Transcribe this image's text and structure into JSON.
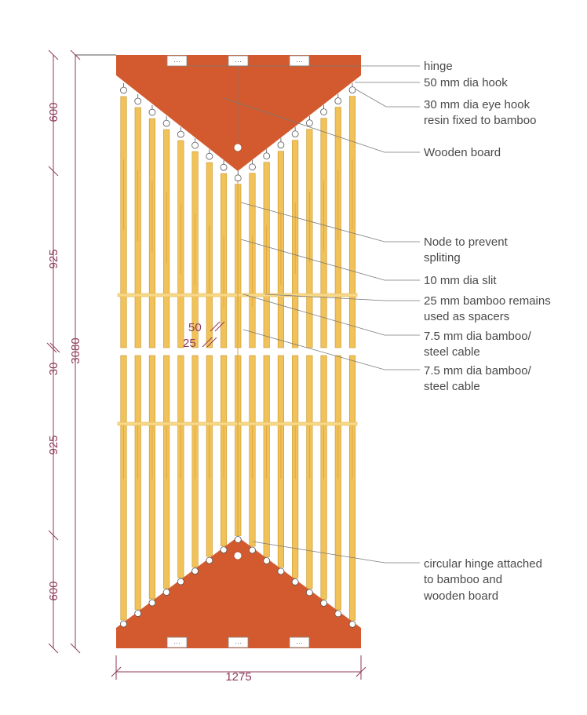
{
  "colors": {
    "board": "#d35a2e",
    "bamboo": "#f1c25a",
    "bamboo_edge": "#c8962a",
    "spacer": "#f7d98a",
    "leader": "#7a7a7a",
    "dimension": "#8e3a5a"
  },
  "labels": {
    "hinge": "hinge",
    "hook_50": "50 mm dia hook",
    "eye_hook_line1": "30 mm dia eye hook",
    "eye_hook_line2": "resin fixed to bamboo",
    "wooden_board": "Wooden board",
    "node_line1": "Node to prevent",
    "node_line2": "spliting",
    "slit": "10 mm dia slit",
    "spacer_line1": "25 mm bamboo remains",
    "spacer_line2": "used as spacers",
    "cable_a_line1": "7.5 mm dia bamboo/",
    "cable_a_line2": "steel cable",
    "cable_b_line1": "7.5 mm dia bamboo/",
    "cable_b_line2": "steel cable",
    "circ_line1": "circular hinge attached",
    "circ_line2": "to bamboo and",
    "circ_line3": "wooden board"
  },
  "dimensions": {
    "top_board": "600",
    "upper_bamboo": "925",
    "gap": "30",
    "lower_bamboo": "925",
    "bottom_board": "600",
    "overall_height": "3080",
    "overall_width": "1275",
    "rod_width": "50",
    "rod_gap": "25"
  },
  "hinge_plate_glyph": "···"
}
